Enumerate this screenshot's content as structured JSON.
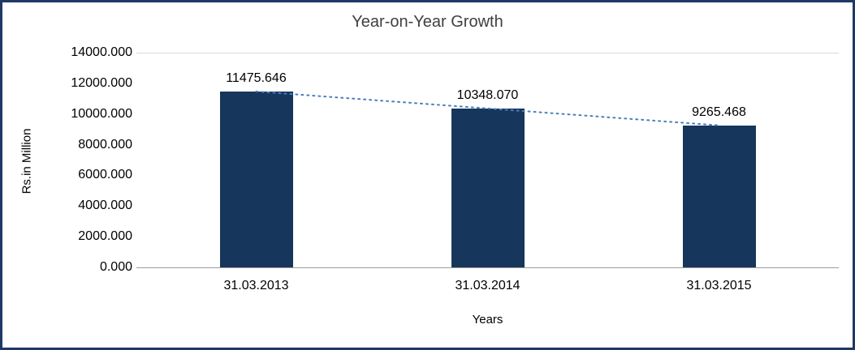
{
  "chart_data": {
    "type": "bar",
    "title": "Year-on-Year Growth",
    "xlabel": "Years",
    "ylabel": "Rs.in Million",
    "categories": [
      "31.03.2013",
      "31.03.2014",
      "31.03.2015"
    ],
    "values": [
      11475.646,
      10348.07,
      9265.468
    ],
    "value_labels": [
      "11475.646",
      "10348.070",
      "9265.468"
    ],
    "ylim": [
      0,
      14000
    ],
    "ytick_step": 2000,
    "ytick_labels": [
      "0.000",
      "2000.000",
      "4000.000",
      "6000.000",
      "8000.000",
      "10000.000",
      "12000.000",
      "14000.000"
    ],
    "grid": "top-gridline-only",
    "legend": "none",
    "trendline": "linear-dotted",
    "colors": {
      "bar": "#16365C",
      "frame": "#1F3864",
      "trendline": "#4A7EBB",
      "gridline": "#D9D9D9",
      "axis_line": "#9c9c9c",
      "title_text": "#404040"
    }
  }
}
